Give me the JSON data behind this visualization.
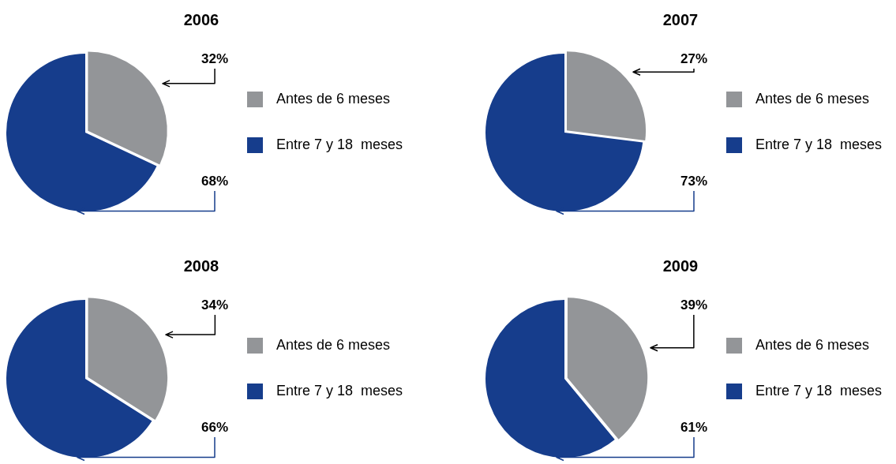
{
  "chart_data": [
    {
      "type": "pie",
      "title": "2006",
      "categories": [
        "Antes de 6 meses",
        "Entre 7 y 18  meses"
      ],
      "values": [
        32,
        68
      ],
      "colors": [
        "#939598",
        "#163d8c"
      ],
      "value_labels": [
        "32%",
        "68%"
      ],
      "legend": "right"
    },
    {
      "type": "pie",
      "title": "2007",
      "categories": [
        "Antes de 6 meses",
        "Entre 7 y 18  meses"
      ],
      "values": [
        27,
        73
      ],
      "colors": [
        "#939598",
        "#163d8c"
      ],
      "value_labels": [
        "27%",
        "73%"
      ],
      "legend": "right"
    },
    {
      "type": "pie",
      "title": "2008",
      "categories": [
        "Antes de 6 meses",
        "Entre 7 y 18  meses"
      ],
      "values": [
        34,
        66
      ],
      "colors": [
        "#939598",
        "#163d8c"
      ],
      "value_labels": [
        "34%",
        "66%"
      ],
      "legend": "right"
    },
    {
      "type": "pie",
      "title": "2009",
      "categories": [
        "Antes de 6 meses",
        "Entre 7 y 18  meses"
      ],
      "values": [
        39,
        61
      ],
      "colors": [
        "#939598",
        "#163d8c"
      ],
      "value_labels": [
        "39%",
        "61%"
      ],
      "legend": "right"
    }
  ]
}
